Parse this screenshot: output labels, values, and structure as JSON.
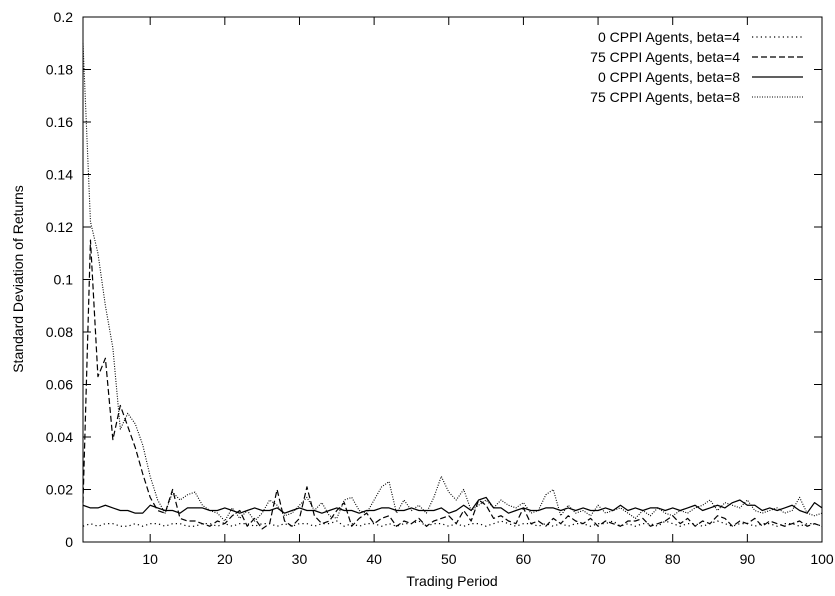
{
  "chart_data": {
    "type": "line",
    "title": "",
    "xlabel": "Trading Period",
    "ylabel": "Standard Deviation of Returns",
    "xlim": [
      1,
      100
    ],
    "ylim": [
      0,
      0.2
    ],
    "xticks": [
      "10",
      "20",
      "30",
      "40",
      "50",
      "60",
      "70",
      "80",
      "90",
      "100"
    ],
    "yticks": [
      "0",
      "0.02",
      "0.04",
      "0.06",
      "0.08",
      "0.1",
      "0.12",
      "0.14",
      "0.16",
      "0.18",
      "0.2"
    ],
    "grid": false,
    "legend_position": "top-right",
    "x": [
      1,
      2,
      3,
      4,
      5,
      6,
      7,
      8,
      9,
      10,
      11,
      12,
      13,
      14,
      15,
      16,
      17,
      18,
      19,
      20,
      21,
      22,
      23,
      24,
      25,
      26,
      27,
      28,
      29,
      30,
      31,
      32,
      33,
      34,
      35,
      36,
      37,
      38,
      39,
      40,
      41,
      42,
      43,
      44,
      45,
      46,
      47,
      48,
      49,
      50,
      51,
      52,
      53,
      54,
      55,
      56,
      57,
      58,
      59,
      60,
      61,
      62,
      63,
      64,
      65,
      66,
      67,
      68,
      69,
      70,
      71,
      72,
      73,
      74,
      75,
      76,
      77,
      78,
      79,
      80,
      81,
      82,
      83,
      84,
      85,
      86,
      87,
      88,
      89,
      90,
      91,
      92,
      93,
      94,
      95,
      96,
      97,
      98,
      99,
      100
    ],
    "series": [
      {
        "name": "0 CPPI Agents, beta=4",
        "style": "sparse-dot",
        "values": [
          0.006,
          0.007,
          0.006,
          0.007,
          0.007,
          0.006,
          0.006,
          0.007,
          0.006,
          0.007,
          0.007,
          0.006,
          0.007,
          0.007,
          0.006,
          0.006,
          0.007,
          0.007,
          0.006,
          0.007,
          0.006,
          0.007,
          0.007,
          0.006,
          0.007,
          0.007,
          0.006,
          0.007,
          0.006,
          0.007,
          0.007,
          0.006,
          0.007,
          0.007,
          0.008,
          0.006,
          0.007,
          0.006,
          0.007,
          0.007,
          0.006,
          0.007,
          0.006,
          0.007,
          0.007,
          0.008,
          0.006,
          0.007,
          0.007,
          0.006,
          0.007,
          0.006,
          0.007,
          0.007,
          0.006,
          0.007,
          0.008,
          0.007,
          0.006,
          0.007,
          0.007,
          0.006,
          0.007,
          0.006,
          0.007,
          0.006,
          0.007,
          0.007,
          0.006,
          0.007,
          0.007,
          0.008,
          0.006,
          0.007,
          0.006,
          0.007,
          0.007,
          0.006,
          0.008,
          0.007,
          0.006,
          0.007,
          0.007,
          0.006,
          0.007,
          0.008,
          0.007,
          0.006,
          0.007,
          0.007,
          0.006,
          0.007,
          0.007,
          0.006,
          0.007,
          0.007,
          0.006,
          0.007,
          0.007,
          0.006
        ]
      },
      {
        "name": "75 CPPI Agents, beta=4",
        "style": "dashed",
        "values": [
          0.015,
          0.115,
          0.063,
          0.07,
          0.039,
          0.052,
          0.044,
          0.036,
          0.026,
          0.017,
          0.012,
          0.011,
          0.02,
          0.009,
          0.008,
          0.008,
          0.007,
          0.006,
          0.008,
          0.007,
          0.01,
          0.012,
          0.006,
          0.009,
          0.005,
          0.007,
          0.02,
          0.008,
          0.006,
          0.009,
          0.021,
          0.01,
          0.007,
          0.008,
          0.012,
          0.015,
          0.006,
          0.009,
          0.011,
          0.007,
          0.009,
          0.01,
          0.006,
          0.008,
          0.007,
          0.009,
          0.006,
          0.008,
          0.009,
          0.01,
          0.007,
          0.012,
          0.008,
          0.016,
          0.014,
          0.009,
          0.01,
          0.008,
          0.007,
          0.013,
          0.007,
          0.008,
          0.006,
          0.009,
          0.007,
          0.01,
          0.008,
          0.007,
          0.009,
          0.006,
          0.008,
          0.007,
          0.006,
          0.008,
          0.008,
          0.009,
          0.006,
          0.007,
          0.008,
          0.01,
          0.007,
          0.009,
          0.006,
          0.008,
          0.007,
          0.01,
          0.009,
          0.006,
          0.008,
          0.007,
          0.009,
          0.006,
          0.008,
          0.007,
          0.006,
          0.007,
          0.008,
          0.006,
          0.007,
          0.006
        ]
      },
      {
        "name": "0 CPPI Agents, beta=8",
        "style": "solid",
        "values": [
          0.014,
          0.013,
          0.013,
          0.014,
          0.013,
          0.012,
          0.012,
          0.011,
          0.011,
          0.014,
          0.013,
          0.012,
          0.012,
          0.011,
          0.013,
          0.013,
          0.013,
          0.012,
          0.012,
          0.013,
          0.012,
          0.011,
          0.012,
          0.013,
          0.012,
          0.012,
          0.013,
          0.011,
          0.012,
          0.013,
          0.012,
          0.012,
          0.011,
          0.012,
          0.013,
          0.012,
          0.012,
          0.011,
          0.012,
          0.012,
          0.013,
          0.013,
          0.012,
          0.012,
          0.013,
          0.012,
          0.012,
          0.012,
          0.013,
          0.011,
          0.012,
          0.014,
          0.012,
          0.016,
          0.017,
          0.013,
          0.013,
          0.011,
          0.012,
          0.013,
          0.012,
          0.012,
          0.013,
          0.013,
          0.012,
          0.013,
          0.012,
          0.013,
          0.012,
          0.012,
          0.013,
          0.012,
          0.014,
          0.012,
          0.013,
          0.012,
          0.013,
          0.013,
          0.012,
          0.013,
          0.012,
          0.013,
          0.014,
          0.012,
          0.013,
          0.014,
          0.013,
          0.015,
          0.016,
          0.014,
          0.014,
          0.012,
          0.013,
          0.012,
          0.013,
          0.014,
          0.012,
          0.011,
          0.015,
          0.013
        ]
      },
      {
        "name": "75 CPPI Agents, beta=8",
        "style": "dense-dot",
        "values": [
          0.19,
          0.122,
          0.11,
          0.09,
          0.074,
          0.043,
          0.049,
          0.045,
          0.037,
          0.025,
          0.016,
          0.011,
          0.019,
          0.016,
          0.018,
          0.019,
          0.014,
          0.012,
          0.011,
          0.008,
          0.013,
          0.009,
          0.012,
          0.008,
          0.011,
          0.016,
          0.014,
          0.01,
          0.011,
          0.014,
          0.017,
          0.012,
          0.015,
          0.01,
          0.009,
          0.016,
          0.017,
          0.012,
          0.011,
          0.016,
          0.021,
          0.023,
          0.011,
          0.016,
          0.012,
          0.014,
          0.011,
          0.017,
          0.025,
          0.019,
          0.016,
          0.02,
          0.012,
          0.014,
          0.016,
          0.013,
          0.016,
          0.014,
          0.013,
          0.015,
          0.011,
          0.012,
          0.018,
          0.02,
          0.01,
          0.014,
          0.011,
          0.012,
          0.01,
          0.014,
          0.011,
          0.012,
          0.013,
          0.011,
          0.009,
          0.012,
          0.01,
          0.013,
          0.011,
          0.01,
          0.012,
          0.011,
          0.013,
          0.014,
          0.016,
          0.012,
          0.015,
          0.014,
          0.013,
          0.016,
          0.012,
          0.011,
          0.012,
          0.013,
          0.011,
          0.012,
          0.017,
          0.011,
          0.01,
          0.011
        ]
      }
    ]
  }
}
